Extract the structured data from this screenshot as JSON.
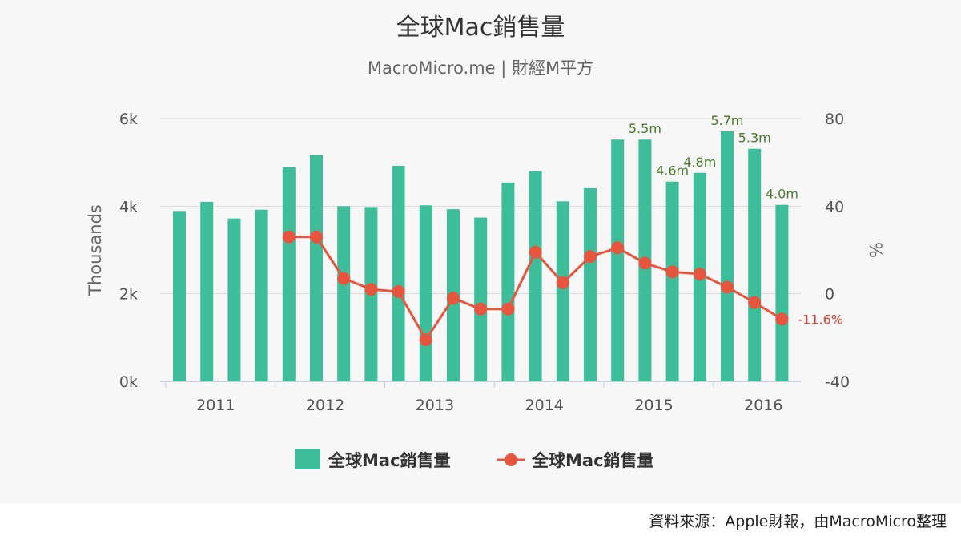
{
  "chart_data": {
    "type": "bar",
    "title": "全球Mac銷售量",
    "subtitle": "MacroMicro.me | 財經M平方",
    "x_tick_labels": [
      "2011",
      "2012",
      "2013",
      "2014",
      "2015",
      "2016"
    ],
    "y_left": {
      "label": "Thousands",
      "ticks": [
        "0k",
        "2k",
        "4k",
        "6k"
      ],
      "range": [
        0,
        6000
      ]
    },
    "y_right": {
      "label": "%",
      "ticks": [
        "-40",
        "0",
        "40",
        "80"
      ],
      "range": [
        -40,
        80
      ]
    },
    "grid": "horizontal",
    "legend_placement": "bottom-center",
    "series": [
      {
        "name": "全球Mac銷售量",
        "type": "bar",
        "color": "#3dbd9a",
        "values": [
          3890,
          4100,
          3720,
          3920,
          4890,
          5170,
          4000,
          3980,
          4920,
          4020,
          3930,
          3740,
          4540,
          4800,
          4110,
          4410,
          5520,
          5520,
          4560,
          4760,
          5710,
          5310,
          4030
        ],
        "labels": [
          "",
          "",
          "",
          "",
          "",
          "",
          "",
          "",
          "",
          "",
          "",
          "",
          "",
          "",
          "",
          "",
          "",
          "5.5m",
          "4.6m",
          "4.8m",
          "5.7m",
          "5.3m",
          "4.0m"
        ]
      },
      {
        "name": "全球Mac銷售量",
        "type": "line",
        "color": "#e8553e",
        "values": [
          null,
          null,
          null,
          null,
          26,
          26,
          7,
          2,
          1,
          -21,
          -2,
          -7,
          -7,
          19,
          5,
          17,
          21,
          14,
          10,
          9,
          3,
          -4,
          -11.6
        ],
        "labels": [
          "",
          "",
          "",
          "",
          "",
          "",
          "",
          "",
          "",
          "",
          "",
          "",
          "",
          "",
          "",
          "",
          "",
          "",
          "",
          "",
          "",
          "",
          "-11.6%"
        ]
      }
    ]
  },
  "footer": {
    "source": "資料來源：Apple財報，由MacroMicro整理"
  }
}
